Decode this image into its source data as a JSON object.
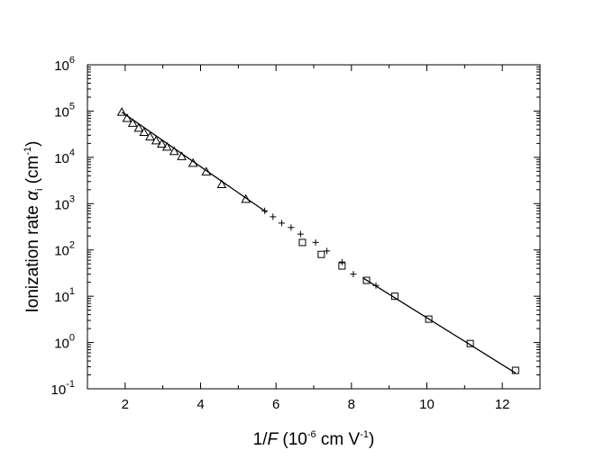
{
  "chart_data": {
    "type": "scatter",
    "x_axis": {
      "label_main": "1/",
      "label_var": "F",
      "label_unit_open": " (10",
      "label_exp1": "-6",
      "label_unit_mid": " cm V",
      "label_exp2": "-1",
      "label_close": ")",
      "range": [
        1,
        13
      ],
      "ticks": [
        2,
        4,
        6,
        8,
        10,
        12
      ],
      "tick_labels": [
        "2",
        "4",
        "6",
        "8",
        "10",
        "12"
      ],
      "minor_ticks": [
        1,
        3,
        5,
        7,
        9,
        11,
        13
      ]
    },
    "y_axis": {
      "label_main": "Ionization rate ",
      "label_var": "α",
      "label_sub": "i",
      "label_unit_open": " (cm",
      "label_exp": "-1",
      "label_close": ")",
      "scale": "log",
      "range_exponents": [
        -1,
        6
      ],
      "ticks": [
        {
          "base": "10",
          "exp": "-1",
          "value": 0.1
        },
        {
          "base": "10",
          "exp": "0",
          "value": 1
        },
        {
          "base": "10",
          "exp": "1",
          "value": 10
        },
        {
          "base": "10",
          "exp": "2",
          "value": 100
        },
        {
          "base": "10",
          "exp": "3",
          "value": 1000
        },
        {
          "base": "10",
          "exp": "4",
          "value": 10000
        },
        {
          "base": "10",
          "exp": "5",
          "value": 100000
        },
        {
          "base": "10",
          "exp": "6",
          "value": 1000000
        }
      ]
    },
    "grid": false,
    "legend": "none",
    "series": [
      {
        "marker": "triangle",
        "points": [
          [
            1.91,
            95000
          ],
          [
            2.05,
            70000
          ],
          [
            2.2,
            55000
          ],
          [
            2.36,
            43000
          ],
          [
            2.5,
            35000
          ],
          [
            2.66,
            28000
          ],
          [
            2.82,
            23000
          ],
          [
            2.97,
            19500
          ],
          [
            3.11,
            16800
          ],
          [
            3.3,
            13500
          ],
          [
            3.5,
            10500
          ],
          [
            3.8,
            7500
          ],
          [
            4.15,
            4900
          ],
          [
            4.56,
            2600
          ],
          [
            5.2,
            1250
          ]
        ]
      },
      {
        "marker": "plus",
        "points": [
          [
            5.7,
            700
          ],
          [
            5.92,
            520
          ],
          [
            6.15,
            380
          ],
          [
            6.4,
            305
          ],
          [
            6.65,
            220
          ],
          [
            7.05,
            145
          ],
          [
            7.35,
            95
          ],
          [
            7.75,
            55
          ],
          [
            8.05,
            30
          ],
          [
            8.65,
            17
          ]
        ]
      },
      {
        "marker": "square",
        "points": [
          [
            6.7,
            145
          ],
          [
            7.2,
            80
          ],
          [
            7.75,
            45
          ],
          [
            8.4,
            22
          ],
          [
            9.15,
            10
          ],
          [
            10.05,
            3.2
          ],
          [
            11.15,
            0.95
          ],
          [
            12.35,
            0.25
          ]
        ]
      }
    ],
    "fit_line": {
      "segments": [
        [
          [
            1.91,
            95000
          ],
          [
            5.75,
            650
          ]
        ],
        [
          [
            8.3,
            25
          ],
          [
            12.35,
            0.22
          ]
        ]
      ]
    }
  }
}
